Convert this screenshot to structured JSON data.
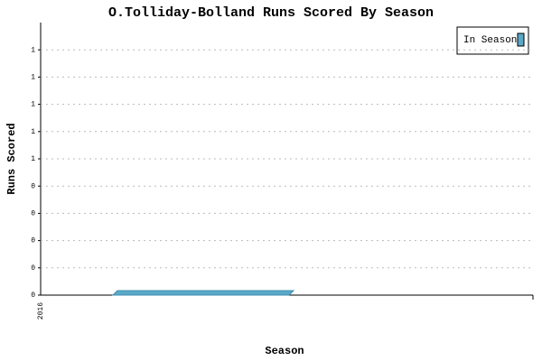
{
  "chart_data": {
    "type": "bar",
    "title": "O.Tolliday-Bolland Runs Scored By Season",
    "x_label": "Season",
    "y_label": "Runs Scored",
    "categories": [
      "2016"
    ],
    "series": [
      {
        "name": "In Season",
        "color": "#5aa9c8",
        "values": [
          0
        ]
      }
    ],
    "ylim": [
      0,
      1
    ],
    "yticks": [
      0,
      {
        "value": 0.1,
        "label": "0"
      },
      {
        "value": 0.2,
        "label": "0"
      },
      {
        "value": 0.3,
        "label": "0"
      },
      {
        "value": 0.4,
        "label": "0"
      },
      {
        "value": 0.5,
        "label": "1"
      },
      {
        "value": 0.6,
        "label": "1"
      },
      {
        "value": 0.7,
        "label": "1"
      },
      {
        "value": 0.8,
        "label": "1"
      },
      {
        "value": 0.9,
        "label": "1"
      }
    ],
    "grid": true,
    "legend": "top-right"
  }
}
